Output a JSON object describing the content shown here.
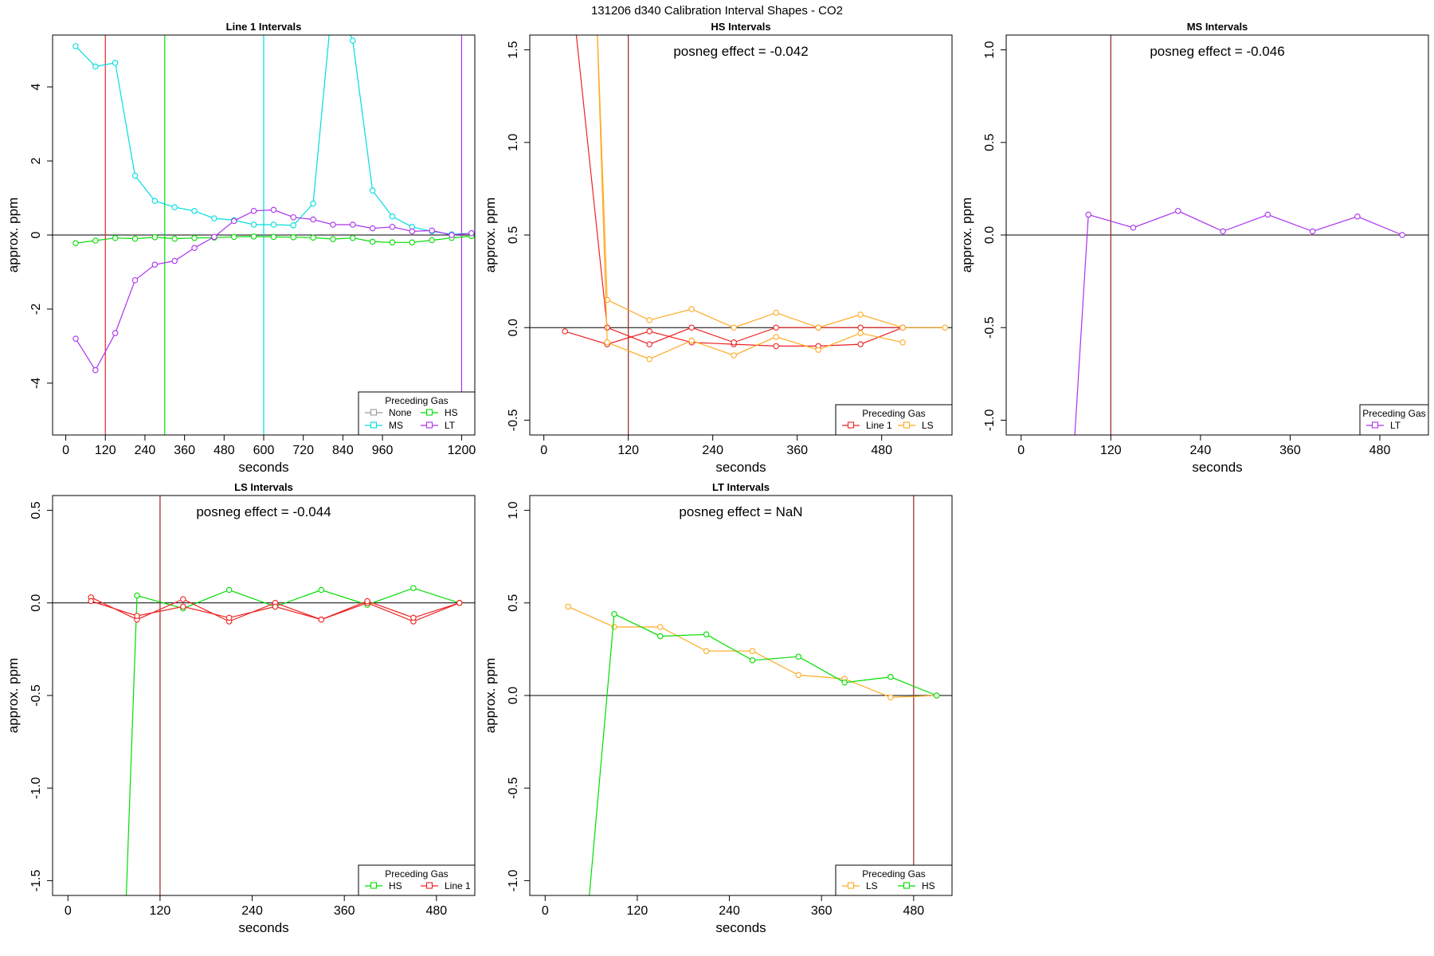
{
  "suptitle": "131206  d340   Calibration Interval Shapes - CO2",
  "colors": {
    "None": "#999999",
    "HS": "#00dd00",
    "MS": "#00dddd",
    "LT": "#aa33ee",
    "Line 1": "#ee2222",
    "LS": "#ffaa22",
    "ref": "#992222"
  },
  "chart_data": [
    {
      "type": "line",
      "title": "Line 1 Intervals",
      "xlabel": "seconds",
      "ylabel": "approx. ppm",
      "xlim": [
        -40,
        1240
      ],
      "ylim": [
        -5.4,
        5.4
      ],
      "xticks": [
        0,
        120,
        240,
        360,
        480,
        600,
        720,
        840,
        960,
        1200
      ],
      "yticks": [
        -4,
        -2,
        0,
        2,
        4
      ],
      "vlines": [
        {
          "x": 120,
          "color": "Line 1"
        },
        {
          "x": 300,
          "color": "HS"
        },
        {
          "x": 600,
          "color": "MS"
        },
        {
          "x": 1200,
          "color": "LT"
        }
      ],
      "annotation": "",
      "legend": {
        "title": "Preceding Gas",
        "columns": 2,
        "position": "bottom-right",
        "entries": [
          "None",
          "HS",
          "MS",
          "LT"
        ]
      },
      "series": [
        {
          "name": "MS",
          "x": [
            30,
            90,
            150,
            210,
            270,
            330,
            390,
            450,
            510,
            570,
            630,
            690,
            750,
            810,
            870,
            930,
            990,
            1050,
            1110,
            1170,
            1230
          ],
          "y": [
            5.1,
            4.55,
            4.65,
            1.6,
            0.92,
            0.75,
            0.65,
            0.45,
            0.4,
            0.28,
            0.28,
            0.26,
            0.85,
            6.5,
            5.25,
            1.2,
            0.5,
            0.22,
            0.1,
            0.02,
            0.05
          ]
        },
        {
          "name": "HS",
          "x": [
            30,
            90,
            150,
            210,
            270,
            330,
            390,
            450,
            510,
            570,
            630,
            690,
            750,
            810,
            870,
            930,
            990,
            1050,
            1110,
            1170,
            1230
          ],
          "y": [
            -0.22,
            -0.15,
            -0.08,
            -0.1,
            -0.06,
            -0.1,
            -0.08,
            -0.07,
            -0.05,
            -0.04,
            -0.05,
            -0.06,
            -0.07,
            -0.11,
            -0.08,
            -0.18,
            -0.2,
            -0.2,
            -0.14,
            -0.08,
            -0.03
          ]
        },
        {
          "name": "LT",
          "x": [
            30,
            90,
            150,
            210,
            270,
            330,
            390,
            450,
            510,
            570,
            630,
            690,
            750,
            810,
            870,
            930,
            990,
            1050,
            1110,
            1170,
            1230
          ],
          "y": [
            -2.8,
            -3.65,
            -2.65,
            -1.22,
            -0.8,
            -0.7,
            -0.35,
            -0.05,
            0.38,
            0.65,
            0.68,
            0.48,
            0.42,
            0.28,
            0.28,
            0.18,
            0.22,
            0.1,
            0.12,
            0.0,
            0.05
          ]
        }
      ]
    },
    {
      "type": "line",
      "title": "HS Intervals",
      "xlabel": "seconds",
      "ylabel": "approx. ppm",
      "xlim": [
        -20,
        580
      ],
      "ylim": [
        -0.58,
        1.58
      ],
      "xticks": [
        0,
        120,
        240,
        360,
        480
      ],
      "yticks": [
        -0.5,
        0.0,
        0.5,
        1.0,
        1.5
      ],
      "vlines": [
        {
          "x": 120,
          "color": "ref"
        }
      ],
      "annotation": "posneg effect = -0.042",
      "legend": {
        "title": "Preceding Gas",
        "columns": 2,
        "position": "bottom-right",
        "entries": [
          "Line 1",
          "LS"
        ]
      },
      "series": [
        {
          "name": "Line 1",
          "x": [
            30,
            90,
            150,
            210,
            270,
            330,
            390,
            450,
            510
          ],
          "y": [
            -0.02,
            -0.09,
            -0.02,
            -0.08,
            -0.09,
            -0.1,
            -0.1,
            -0.09,
            0.0
          ]
        },
        {
          "name": "Line 1",
          "x": [
            40,
            90,
            150,
            210,
            270,
            330,
            390,
            450,
            510
          ],
          "y": [
            1.8,
            0.0,
            -0.09,
            0.0,
            -0.08,
            0.0,
            0.0,
            0.0,
            0.0
          ]
        },
        {
          "name": "LS",
          "x": [
            75,
            90,
            150,
            210,
            270,
            330,
            390,
            450,
            510,
            570
          ],
          "y": [
            1.7,
            0.15,
            0.04,
            0.1,
            0.0,
            0.08,
            0.0,
            0.07,
            0.0,
            0.0
          ]
        },
        {
          "name": "LS",
          "x": [
            75,
            90,
            150,
            210,
            270,
            330,
            390,
            450,
            510
          ],
          "y": [
            1.7,
            -0.08,
            -0.17,
            -0.07,
            -0.15,
            -0.05,
            -0.12,
            -0.03,
            -0.08
          ]
        }
      ]
    },
    {
      "type": "line",
      "title": "MS Intervals",
      "xlabel": "seconds",
      "ylabel": "approx. ppm",
      "xlim": [
        -20,
        545
      ],
      "ylim": [
        -1.08,
        1.08
      ],
      "xticks": [
        0,
        120,
        240,
        360,
        480
      ],
      "yticks": [
        -1.0,
        -0.5,
        0.0,
        0.5,
        1.0
      ],
      "vlines": [
        {
          "x": 120,
          "color": "ref"
        }
      ],
      "annotation": "posneg effect = -0.046",
      "legend": {
        "title": "Preceding Gas",
        "columns": 1,
        "position": "bottom-right",
        "entries": [
          "LT"
        ]
      },
      "series": [
        {
          "name": "LT",
          "x": [
            70,
            90,
            150,
            210,
            270,
            330,
            390,
            450,
            510
          ],
          "y": [
            -1.2,
            0.11,
            0.04,
            0.13,
            0.02,
            0.11,
            0.02,
            0.1,
            0.0
          ]
        }
      ]
    },
    {
      "type": "line",
      "title": "LS Intervals",
      "xlabel": "seconds",
      "ylabel": "approx. ppm",
      "xlim": [
        -20,
        530
      ],
      "ylim": [
        -1.58,
        0.58
      ],
      "xticks": [
        0,
        120,
        240,
        360,
        480
      ],
      "yticks": [
        -1.5,
        -1.0,
        -0.5,
        0.0,
        0.5
      ],
      "vlines": [
        {
          "x": 120,
          "color": "ref"
        }
      ],
      "annotation": "posneg effect = -0.044",
      "legend": {
        "title": "Preceding Gas",
        "columns": 2,
        "position": "bottom-right",
        "entries": [
          "HS",
          "Line 1"
        ]
      },
      "series": [
        {
          "name": "HS",
          "x": [
            75,
            90,
            150,
            210,
            270,
            330,
            390,
            450,
            510
          ],
          "y": [
            -1.7,
            0.04,
            -0.03,
            0.07,
            -0.02,
            0.07,
            -0.01,
            0.08,
            0.0
          ]
        },
        {
          "name": "Line 1",
          "x": [
            30,
            90,
            150,
            210,
            270,
            330,
            390,
            450,
            510
          ],
          "y": [
            0.03,
            -0.09,
            0.02,
            -0.1,
            0.0,
            -0.09,
            0.0,
            -0.1,
            0.0
          ]
        },
        {
          "name": "Line 1",
          "x": [
            30,
            90,
            150,
            210,
            270,
            330,
            390,
            450,
            510
          ],
          "y": [
            0.01,
            -0.07,
            -0.02,
            -0.08,
            -0.02,
            -0.09,
            0.01,
            -0.08,
            0.0
          ]
        }
      ]
    },
    {
      "type": "line",
      "title": "LT Intervals",
      "xlabel": "seconds",
      "ylabel": "approx. ppm",
      "xlim": [
        -20,
        530
      ],
      "ylim": [
        -1.08,
        1.08
      ],
      "xticks": [
        0,
        120,
        240,
        360,
        480
      ],
      "yticks": [
        -1.0,
        -0.5,
        0.0,
        0.5,
        1.0
      ],
      "vlines": [
        {
          "x": 480,
          "color": "ref"
        }
      ],
      "annotation": "posneg effect = NaN",
      "legend": {
        "title": "Preceding Gas",
        "columns": 2,
        "position": "bottom-right",
        "entries": [
          "LS",
          "HS"
        ]
      },
      "series": [
        {
          "name": "LS",
          "x": [
            30,
            90,
            150,
            210,
            270,
            330,
            390,
            450,
            510
          ],
          "y": [
            0.48,
            0.37,
            0.37,
            0.24,
            0.24,
            0.11,
            0.09,
            -0.01,
            0.0
          ]
        },
        {
          "name": "HS",
          "x": [
            55,
            90,
            150,
            210,
            270,
            330,
            390,
            450,
            510
          ],
          "y": [
            -1.2,
            0.44,
            0.32,
            0.33,
            0.19,
            0.21,
            0.07,
            0.1,
            0.0
          ]
        }
      ]
    }
  ]
}
